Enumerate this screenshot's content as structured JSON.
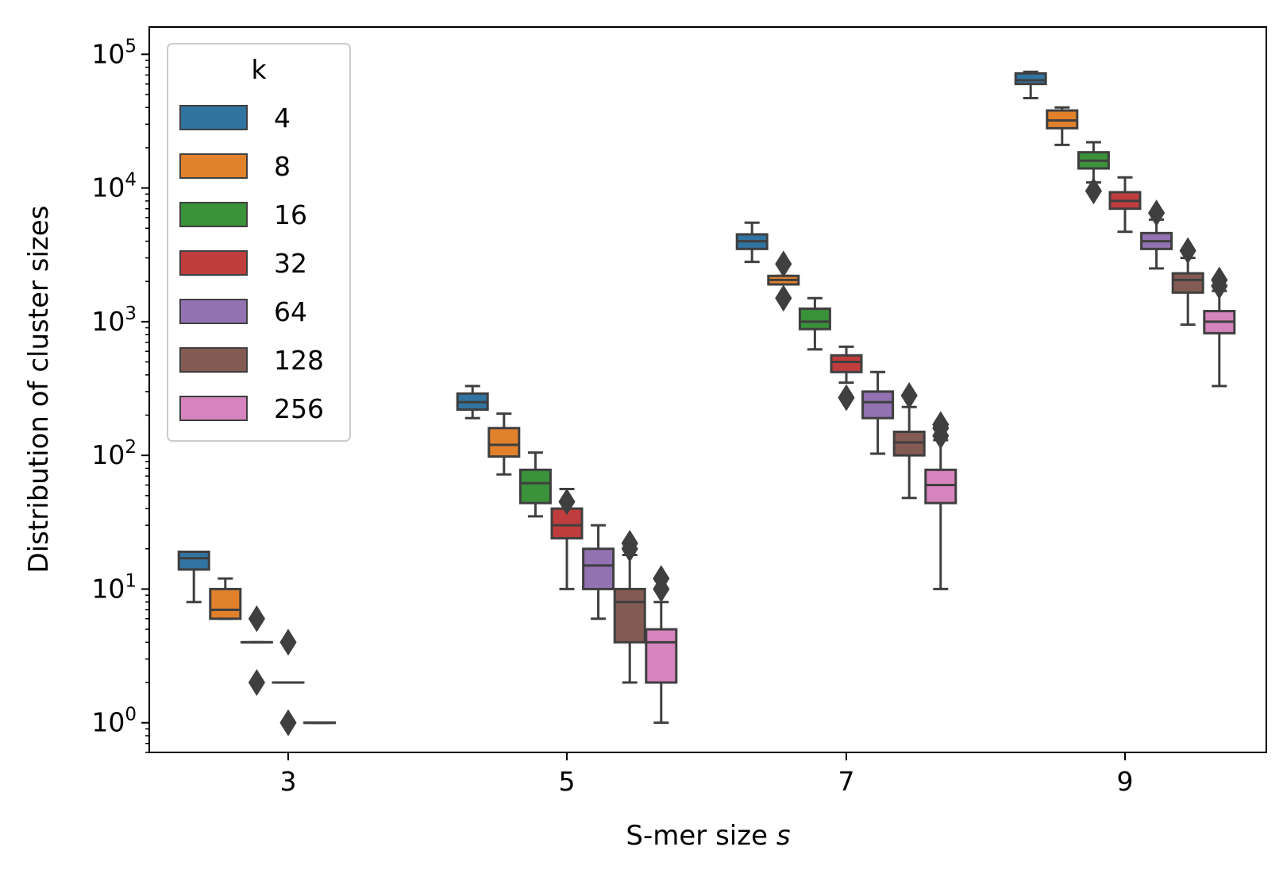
{
  "chart_data": {
    "type": "boxplot",
    "xlabel": "S-mer size",
    "xlabel_var": "s",
    "ylabel": "Distribution of cluster sizes",
    "yscale": "log",
    "ylim": [
      0.6,
      160000
    ],
    "categories": [
      "3",
      "5",
      "7",
      "9"
    ],
    "legend": {
      "title": "k",
      "position": "top-left"
    },
    "grid": false,
    "series": [
      {
        "name": "4",
        "color": "#3274a1",
        "boxes": [
          {
            "whislo": 8,
            "q1": 14,
            "med": 17,
            "q3": 19,
            "whishi": 19,
            "fliers": []
          },
          {
            "whislo": 190,
            "q1": 220,
            "med": 250,
            "q3": 290,
            "whishi": 330,
            "fliers": []
          },
          {
            "whislo": 2800,
            "q1": 3500,
            "med": 4000,
            "q3": 4500,
            "whishi": 5500,
            "fliers": []
          },
          {
            "whislo": 47000,
            "q1": 60000,
            "med": 64000,
            "q3": 72000,
            "whishi": 74000,
            "fliers": []
          }
        ]
      },
      {
        "name": "8",
        "color": "#e1812c",
        "boxes": [
          {
            "whislo": 6,
            "q1": 6,
            "med": 7,
            "q3": 10,
            "whishi": 12,
            "fliers": []
          },
          {
            "whislo": 72,
            "q1": 98,
            "med": 120,
            "q3": 160,
            "whishi": 205,
            "fliers": []
          },
          {
            "whislo": 1900,
            "q1": 1900,
            "med": 2050,
            "q3": 2200,
            "whishi": 2200,
            "fliers": [
              1500,
              2700
            ]
          },
          {
            "whislo": 21000,
            "q1": 28000,
            "med": 32000,
            "q3": 38000,
            "whishi": 40000,
            "fliers": []
          }
        ]
      },
      {
        "name": "16",
        "color": "#3a923a",
        "boxes": [
          {
            "whislo": 4,
            "q1": 4,
            "med": 4,
            "q3": 4,
            "whishi": 4,
            "fliers": [
              2,
              6
            ]
          },
          {
            "whislo": 35,
            "q1": 44,
            "med": 62,
            "q3": 78,
            "whishi": 105,
            "fliers": []
          },
          {
            "whislo": 620,
            "q1": 880,
            "med": 1000,
            "q3": 1250,
            "whishi": 1500,
            "fliers": []
          },
          {
            "whislo": 11000,
            "q1": 14000,
            "med": 16000,
            "q3": 18500,
            "whishi": 22000,
            "fliers": [
              9500
            ]
          }
        ]
      },
      {
        "name": "32",
        "color": "#c03d3e",
        "boxes": [
          {
            "whislo": 2,
            "q1": 2,
            "med": 2,
            "q3": 2,
            "whishi": 2,
            "fliers": [
              1,
              4
            ]
          },
          {
            "whislo": 10,
            "q1": 24,
            "med": 30,
            "q3": 40,
            "whishi": 56,
            "fliers": [
              45
            ]
          },
          {
            "whislo": 350,
            "q1": 420,
            "med": 500,
            "q3": 560,
            "whishi": 650,
            "fliers": [
              270
            ]
          },
          {
            "whislo": 4700,
            "q1": 7000,
            "med": 8000,
            "q3": 9300,
            "whishi": 12000,
            "fliers": []
          }
        ]
      },
      {
        "name": "64",
        "color": "#9372b2",
        "boxes": [
          {
            "whislo": 1,
            "q1": 1,
            "med": 1,
            "q3": 1,
            "whishi": 1,
            "fliers": []
          },
          {
            "whislo": 6,
            "q1": 10,
            "med": 15,
            "q3": 20,
            "whishi": 30,
            "fliers": []
          },
          {
            "whislo": 103,
            "q1": 190,
            "med": 250,
            "q3": 300,
            "whishi": 420,
            "fliers": []
          },
          {
            "whislo": 2500,
            "q1": 3500,
            "med": 4000,
            "q3": 4600,
            "whishi": 5800,
            "fliers": [
              6500
            ]
          }
        ]
      },
      {
        "name": "128",
        "color": "#845b53",
        "boxes": [
          {
            "whislo": 2,
            "q1": 4,
            "med": 8,
            "q3": 10,
            "whishi": 18,
            "fliers": [
              20,
              22
            ]
          },
          {
            "whislo": 48,
            "q1": 100,
            "med": 125,
            "q3": 150,
            "whishi": 230,
            "fliers": [
              280
            ]
          },
          {
            "whislo": 950,
            "q1": 1650,
            "med": 2050,
            "q3": 2300,
            "whishi": 3000,
            "fliers": [
              3400
            ]
          }
        ]
      },
      {
        "name": "256",
        "color": "#d684bd",
        "boxes": [
          {
            "whislo": 1,
            "q1": 2,
            "med": 4,
            "q3": 5,
            "whishi": 8,
            "fliers": [
              10,
              12
            ]
          },
          {
            "whislo": 10,
            "q1": 44,
            "med": 60,
            "q3": 78,
            "whishi": 130,
            "fliers": [
              140,
              160,
              170
            ]
          },
          {
            "whislo": 330,
            "q1": 820,
            "med": 1000,
            "q3": 1200,
            "whishi": 1700,
            "fliers": [
              1850,
              2050
            ]
          }
        ]
      }
    ],
    "series_slots": [
      [
        0,
        1,
        2,
        3
      ],
      [
        0,
        1,
        2,
        3
      ],
      [
        0,
        1,
        2,
        3
      ],
      [
        0,
        1,
        2,
        3
      ],
      [
        0,
        1,
        2,
        3
      ],
      [
        1,
        2,
        3
      ],
      [
        1,
        2,
        3
      ]
    ],
    "extra_boxes": [
      {
        "series": 4,
        "category": 0,
        "box": {
          "whislo": 1,
          "q1": 1,
          "med": 1,
          "q3": 1,
          "whishi": 1,
          "fliers": []
        }
      }
    ]
  }
}
